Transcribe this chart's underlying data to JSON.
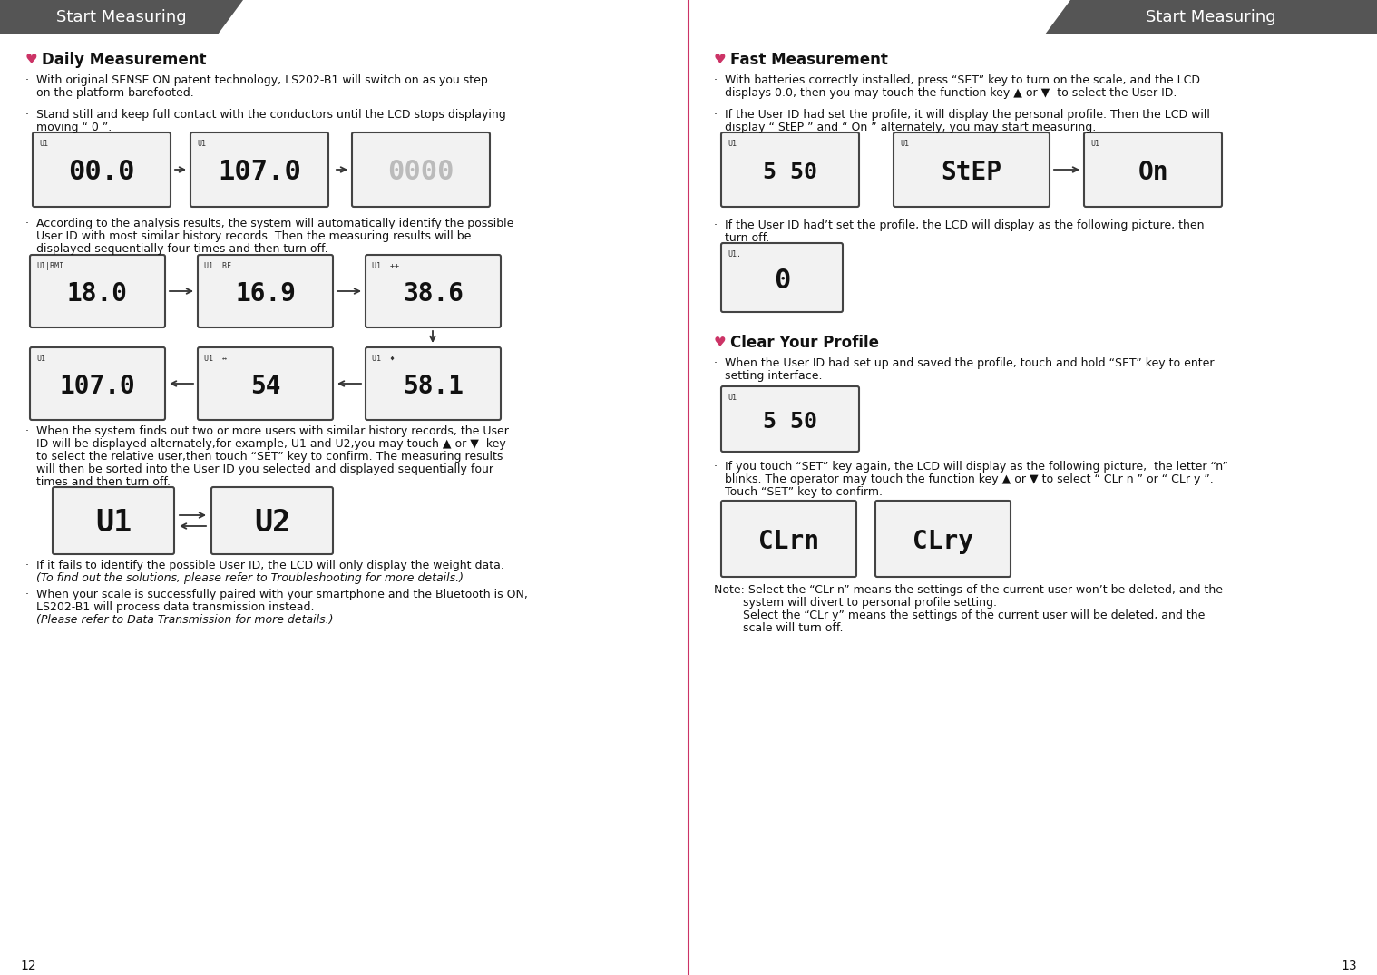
{
  "bg_color": "#ffffff",
  "header_bg": "#555555",
  "header_text_color": "#ffffff",
  "header_left_text": "Start Measuring",
  "header_right_text": "Start Measuring",
  "divider_color": "#cc3366",
  "heart_color": "#cc3366",
  "page_num_left": "12",
  "page_num_right": "13",
  "left_col": {
    "daily_title": "Daily Measurement",
    "b1_line1": "·  With original SENSE ON patent technology, LS202-B1 will switch on as you step",
    "b1_line2": "   on the platform barefooted.",
    "b2_line1": "·  Stand still and keep full contact with the conductors until the LCD stops displaying",
    "b2_line2": "   moving “ 0 ”.",
    "b3_line1": "·  According to the analysis results, the system will automatically identify the possible",
    "b3_line2": "   User ID with most similar history records. Then the measuring results will be",
    "b3_line3": "   displayed sequentially four times and then turn off.",
    "b4_line1": "·  When the system finds out two or more users with similar history records, the User",
    "b4_line2": "   ID will be displayed alternately,for example, U1 and U2,you may touch ▲ or ▼  key",
    "b4_line3": "   to select the relative user,then touch “SET” key to confirm. The measuring results",
    "b4_line4": "   will then be sorted into the User ID you selected and displayed sequentially four",
    "b4_line5": "   times and then turn off.",
    "b5_line1": "·  If it fails to identify the possible User ID, the LCD will only display the weight data.",
    "b5_line2_italic": "   (To find out the solutions, please refer to Troubleshooting for more details.)",
    "b6_line1": "·  When your scale is successfully paired with your smartphone and the Bluetooth is ON,",
    "b6_line2": "   LS202-B1 will process data transmission instead.",
    "b6_line3_italic": "   (Please refer to Data Transmission for more details.)"
  },
  "right_col": {
    "fast_title": "Fast Measurement",
    "fb1_line1": "·  With batteries correctly installed, press “SET” key to turn on the scale, and the LCD",
    "fb1_line2": "   displays 0.0, then you may touch the function key ▲ or ▼  to select the User ID.",
    "fb2_line1": "·  If the User ID had set the profile, it will display the personal profile. Then the LCD will",
    "fb2_line2": "   display “ StEP ” and “ On ” alternately, you may start measuring.",
    "fb3_line1": "·  If the User ID had’t set the profile, the LCD will display as the following picture, then",
    "fb3_line2": "   turn off.",
    "clear_title": "Clear Your Profile",
    "cb1_dot": "·",
    "cb1_line1": "  When the User ID had set up and saved the profile, touch and hold “SET” key to enter",
    "cb1_line2": "   setting interface.",
    "cb2_line1": "·  If you touch “SET” key again, the LCD will display as the following picture,  the letter “n”",
    "cb2_line2": "   blinks. The operator may touch the function key ▲ or ▼ to select “ CLr n ” or “ CLr y ”.",
    "cb2_line3": "   Touch “SET” key to confirm.",
    "note_line1": "Note: Select the “CLr n” means the settings of the current user won’t be deleted, and the",
    "note_line2": "        system will divert to personal profile setting.",
    "note_line3": "        Select the “CLr y” means the settings of the current user will be deleted, and the",
    "note_line4": "        scale will turn off."
  }
}
